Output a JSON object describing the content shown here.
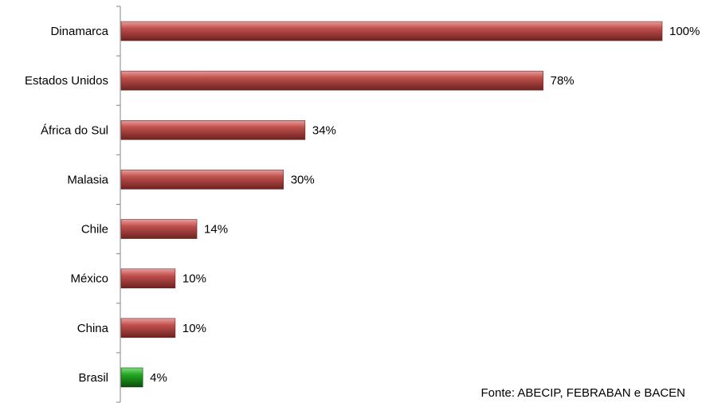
{
  "chart_data": {
    "type": "bar",
    "orientation": "horizontal",
    "categories": [
      "Dinamarca",
      "Estados Unidos",
      "África do Sul",
      "Malasia",
      "Chile",
      "México",
      "China",
      "Brasil"
    ],
    "values": [
      100,
      78,
      34,
      30,
      14,
      10,
      10,
      4
    ],
    "value_labels": [
      "100%",
      "78%",
      "34%",
      "30%",
      "14%",
      "10%",
      "10%",
      "4%"
    ],
    "xlim": [
      0,
      100
    ],
    "grid": false,
    "legend": "none",
    "colors": {
      "default_bar": "#c0504d",
      "default_bar_dark": "#6e2220",
      "highlight_bar": "#22a822",
      "highlight_bar_dark": "#0b4d0b",
      "highlight_category": "Brasil"
    },
    "annotations": [
      "Fonte: ABECIP, FEBRABAN e BACEN"
    ]
  }
}
